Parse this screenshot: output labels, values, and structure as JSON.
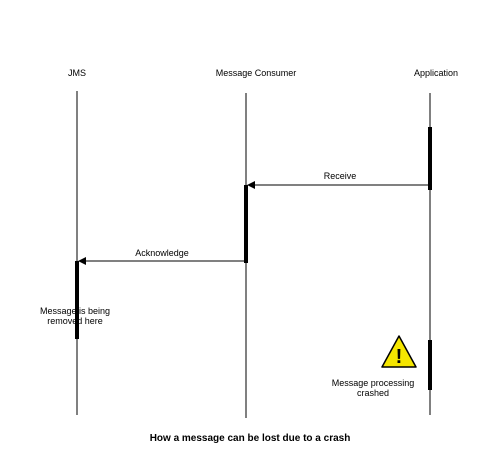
{
  "participants": {
    "jms": "JMS",
    "consumer": "Message Consumer",
    "application": "Application"
  },
  "messages": {
    "receive": "Receive",
    "acknowledge": "Acknowledge"
  },
  "notes": {
    "jms_note_line1": "Message is being",
    "jms_note_line2": "removed here",
    "crash_note_line1": "Message processing",
    "crash_note_line2": "crashed"
  },
  "icons": {
    "warning": "warning-icon",
    "warning_glyph": "!"
  },
  "colors": {
    "warning_fill": "#f5e600",
    "line": "#000000"
  },
  "caption": "How a message can be lost due to a crash"
}
